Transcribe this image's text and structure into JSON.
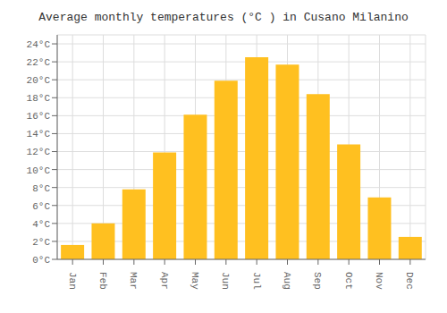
{
  "chart_data": {
    "type": "bar",
    "title": "Average monthly temperatures (°C ) in Cusano Milanino",
    "categories": [
      "Jan",
      "Feb",
      "Mar",
      "Apr",
      "May",
      "Jun",
      "Jul",
      "Aug",
      "Sep",
      "Oct",
      "Nov",
      "Dec"
    ],
    "values": [
      1.6,
      4.0,
      7.8,
      11.9,
      16.1,
      19.9,
      22.5,
      21.7,
      18.4,
      12.8,
      6.9,
      2.5
    ],
    "color": "#FFC020",
    "ylim": [
      0,
      25
    ],
    "yticks": [
      {
        "value": 0,
        "label": "0°C"
      },
      {
        "value": 2,
        "label": "2°C"
      },
      {
        "value": 4,
        "label": "4°C"
      },
      {
        "value": 6,
        "label": "6°C"
      },
      {
        "value": 8,
        "label": "8°C"
      },
      {
        "value": 10,
        "label": "10°C"
      },
      {
        "value": 12,
        "label": "12°C"
      },
      {
        "value": 14,
        "label": "14°C"
      },
      {
        "value": 16,
        "label": "16°C"
      },
      {
        "value": 18,
        "label": "18°C"
      },
      {
        "value": 20,
        "label": "20°C"
      },
      {
        "value": 22,
        "label": "22°C"
      },
      {
        "value": 24,
        "label": "24°C"
      }
    ],
    "grid": true
  }
}
